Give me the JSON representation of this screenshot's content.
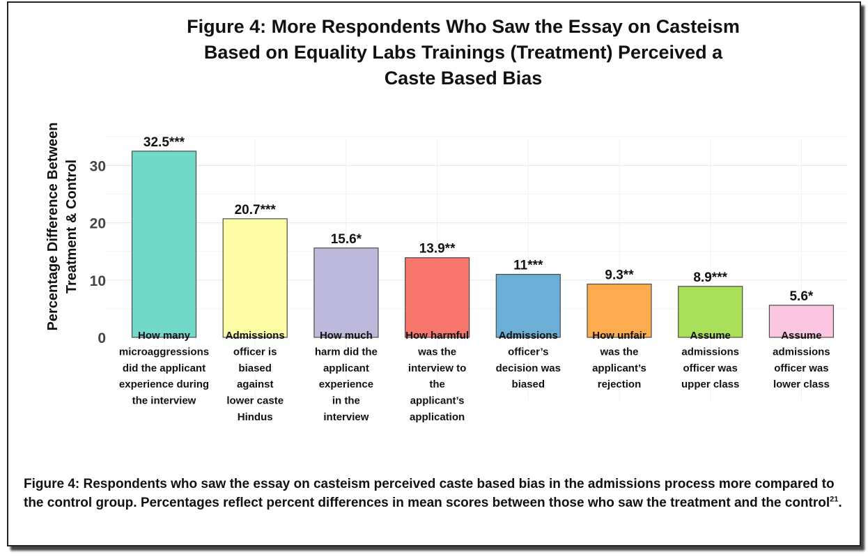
{
  "chart_data": {
    "type": "bar",
    "title": "Figure 4: More Respondents Who Saw the Essay on Casteism\nBased on Equality Labs Trainings (Treatment) Perceived a\nCaste Based Bias",
    "ylabel": "Percentage Difference Between\nTreatment & Control",
    "xlabel": "",
    "ylim": [
      0,
      35
    ],
    "yticks": [
      0,
      10,
      20,
      30
    ],
    "grid": true,
    "categories": [
      "How many microaggressions did the applicant experience during the interview",
      "Admissions officer is biased against lower caste Hindus",
      "How much harm did the applicant experience in the interview",
      "How harmful was the interview to the applicant’s application",
      "Admissions officer’s decision was biased",
      "How unfair was the applicant’s rejection",
      "Assume admissions officer was upper class",
      "Assume admissions officer was lower class"
    ],
    "category_lines": [
      [
        "How many",
        "microaggressions",
        "did the applicant",
        "experience during",
        "the interview"
      ],
      [
        "Admissions",
        "officer is",
        "biased",
        "against",
        "lower caste",
        "Hindus"
      ],
      [
        "How much",
        "harm did the",
        "applicant",
        "experience",
        "in the",
        "interview"
      ],
      [
        "How harmful",
        "was the",
        "interview to",
        "the",
        "applicant’s",
        "application"
      ],
      [
        "Admissions",
        "officer’s",
        "decision was",
        "biased"
      ],
      [
        "How unfair",
        "was the",
        "applicant’s",
        "rejection"
      ],
      [
        "Assume",
        "admissions",
        "officer was",
        "upper class"
      ],
      [
        "Assume",
        "admissions",
        "officer was",
        "lower class"
      ]
    ],
    "values": [
      32.5,
      20.7,
      15.6,
      13.9,
      11,
      9.3,
      8.9,
      5.6
    ],
    "data_labels": [
      "32.5***",
      "20.7***",
      "15.6*",
      "13.9**",
      "11***",
      "9.3**",
      "8.9***",
      "5.6*"
    ],
    "colors": [
      "#72d8c9",
      "#fdfda6",
      "#bdb9da",
      "#f8776d",
      "#6bafd6",
      "#fcac4e",
      "#a9df59",
      "#fcc6e2"
    ]
  },
  "caption": {
    "text": "Figure 4: Respondents who saw the essay on casteism perceived caste based bias in the admissions process more compared to the control group. Percentages reflect percent differences in mean scores between those who saw the treatment and the control",
    "footnote": "21",
    "end": "."
  }
}
